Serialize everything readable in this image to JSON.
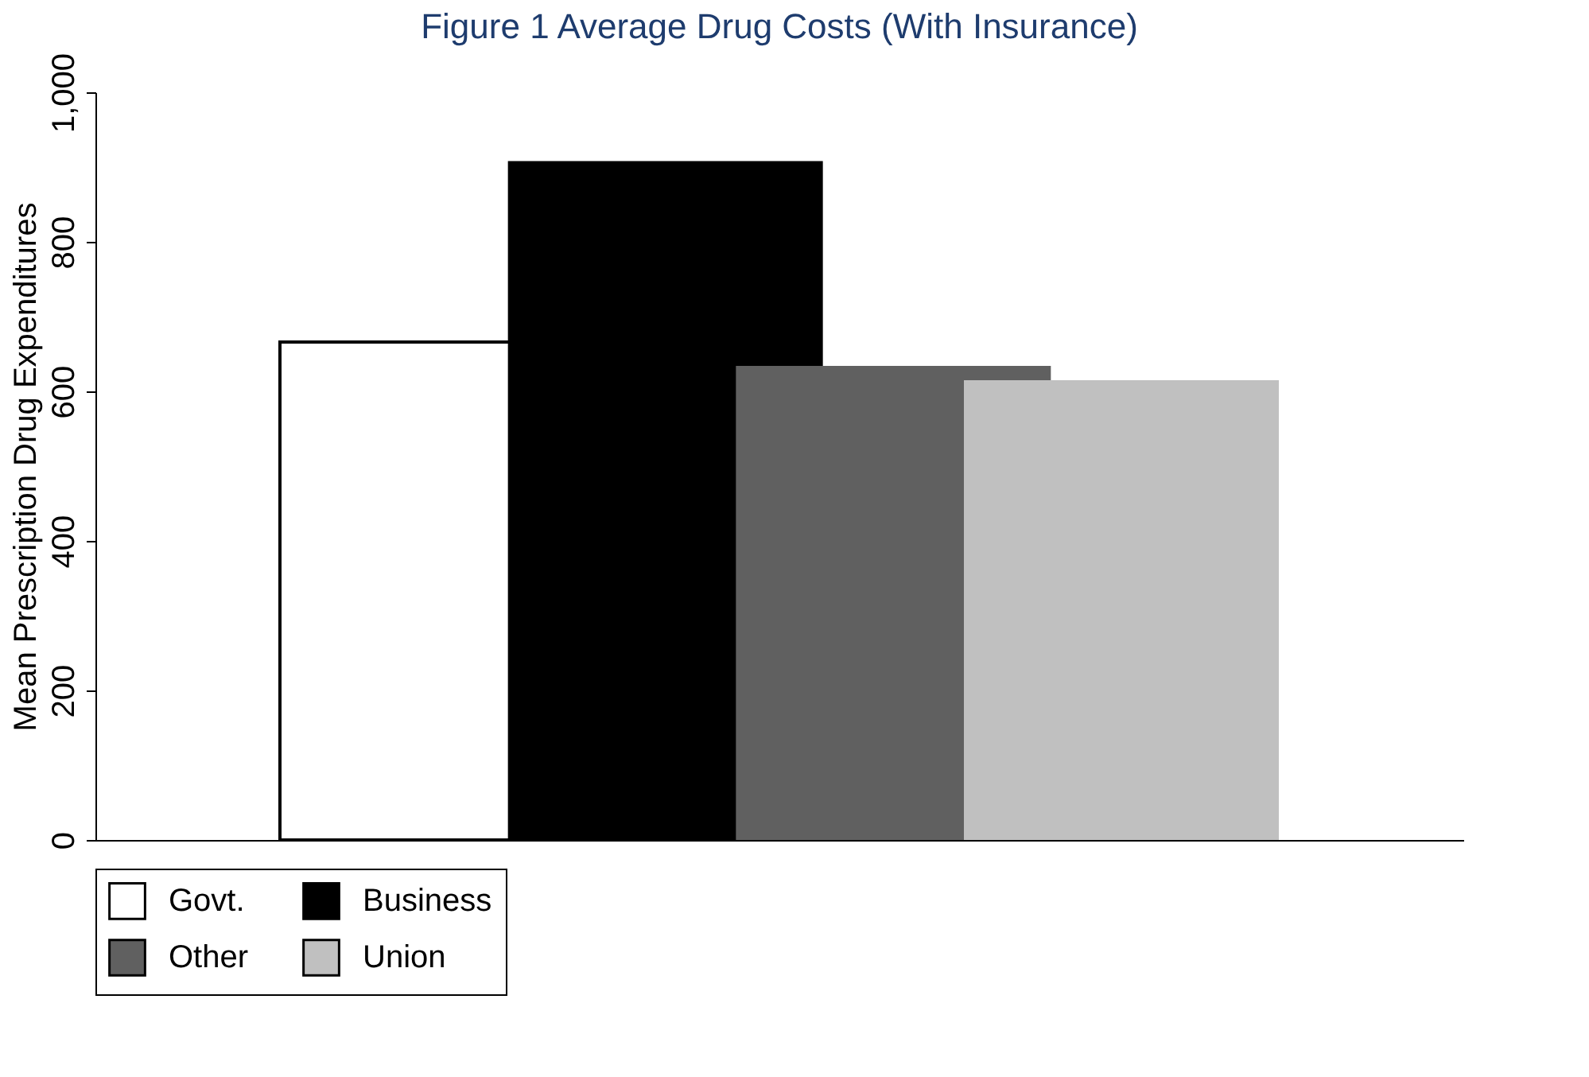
{
  "chart_data": {
    "type": "bar",
    "title": "Figure 1 Average Drug Costs (With Insurance)",
    "ylabel": "Mean Prescription Drug Expenditures",
    "categories": [
      null
    ],
    "series": [
      {
        "name": "Govt.",
        "color": "#ffffff",
        "values": [
          666
        ]
      },
      {
        "name": "Business",
        "color": "#000000",
        "values": [
          908
        ]
      },
      {
        "name": "Other",
        "color": "#606060",
        "values": [
          634
        ]
      },
      {
        "name": "Union",
        "color": "#c0c0c0",
        "values": [
          615
        ]
      }
    ],
    "ylim": [
      0,
      1000
    ],
    "yticks": [
      0,
      200,
      400,
      600,
      800,
      {
        "value": 1000,
        "label": "1,000"
      }
    ],
    "grid": false,
    "legend": "bottom",
    "tick_labels": "y"
  }
}
